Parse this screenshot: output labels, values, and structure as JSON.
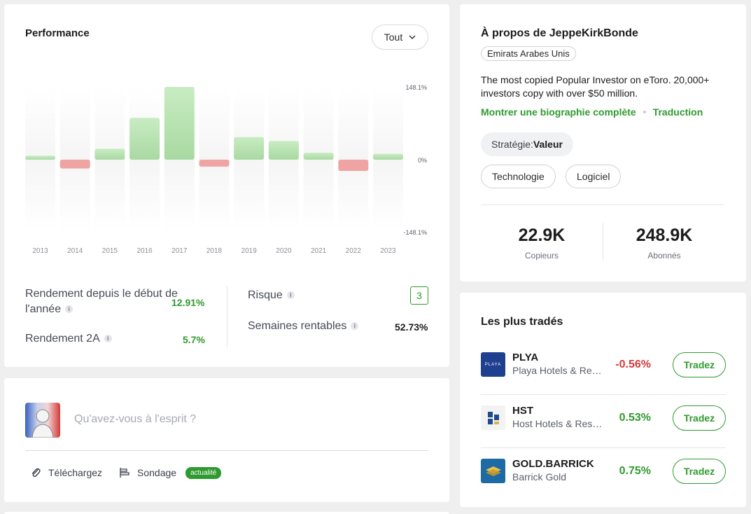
{
  "performance": {
    "title": "Performance",
    "period_select": "Tout",
    "stats": {
      "ytd_label": "Rendement depuis le début de l'année",
      "ytd_value": "12.91%",
      "two_year_label": "Rendement 2A",
      "two_year_value": "5.7%",
      "risk_label": "Risque",
      "risk_value": "3",
      "profitable_weeks_label": "Semaines rentables",
      "profitable_weeks_value": "52.73%"
    }
  },
  "chart_data": {
    "type": "bar",
    "categories": [
      "2013",
      "2014",
      "2015",
      "2016",
      "2017",
      "2018",
      "2019",
      "2020",
      "2021",
      "2022",
      "2023"
    ],
    "values": [
      8,
      -18,
      22,
      85,
      148.1,
      -14,
      46,
      38,
      14,
      -23,
      12
    ],
    "tick_labels": [
      "148.1%",
      "0%",
      "-148.1%"
    ],
    "ylim": [
      -148.1,
      148.1
    ],
    "colors": {
      "positive": "#bfe6b9",
      "negative": "#f0a3a3"
    }
  },
  "composer": {
    "placeholder": "Qu'avez-vous à l'esprit ?",
    "upload_label": "Téléchargez",
    "poll_label": "Sondage",
    "poll_badge": "actualité"
  },
  "about": {
    "title": "À propos de JeppeKirkBonde",
    "country": "Emirats Arabes Unis",
    "bio": "The most copied Popular Investor on eToro. 20,000+ investors copy with over $50 million.",
    "show_bio_link": "Montrer une biographie complète",
    "translate_link": "Traduction",
    "strategy_label": "Stratégie:",
    "strategy_value": "Valeur",
    "tags": [
      "Technologie",
      "Logiciel"
    ],
    "copiers_value": "22.9K",
    "copiers_label": "Copieurs",
    "followers_value": "248.9K",
    "followers_label": "Abonnés"
  },
  "most_traded": {
    "title": "Les plus tradés",
    "trade_label": "Tradez",
    "items": [
      {
        "ticker": "PLYA",
        "company": "Playa Hotels & Resorts",
        "change": "-0.56%",
        "direction": "down",
        "logo_text": "PLAYA",
        "logo_color": "#1f3f8f"
      },
      {
        "ticker": "HST",
        "company": "Host Hotels & Resorts",
        "change": "0.53%",
        "direction": "up",
        "logo_color": "#1e4c8f"
      },
      {
        "ticker": "GOLD.BARRICK",
        "company": "Barrick Gold",
        "change": "0.75%",
        "direction": "up",
        "logo_color": "#1d6aa5"
      }
    ]
  }
}
